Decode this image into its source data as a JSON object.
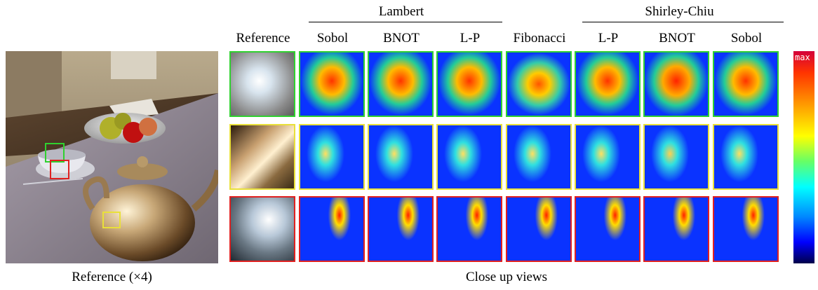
{
  "groups": {
    "lambert": "Lambert",
    "shirley": "Shirley-Chiu"
  },
  "columns": [
    "Reference",
    "Sobol",
    "BNOT",
    "L-P",
    "Fibonacci",
    "L-P",
    "BNOT",
    "Sobol"
  ],
  "captions": {
    "left": "Reference (×4)",
    "right": "Close up views"
  },
  "scale_label": "max",
  "rows": [
    "green",
    "yellow",
    "red"
  ],
  "colors": {
    "green": "#2fd12f",
    "yellow": "#e9e03a",
    "red": "#e02020"
  }
}
